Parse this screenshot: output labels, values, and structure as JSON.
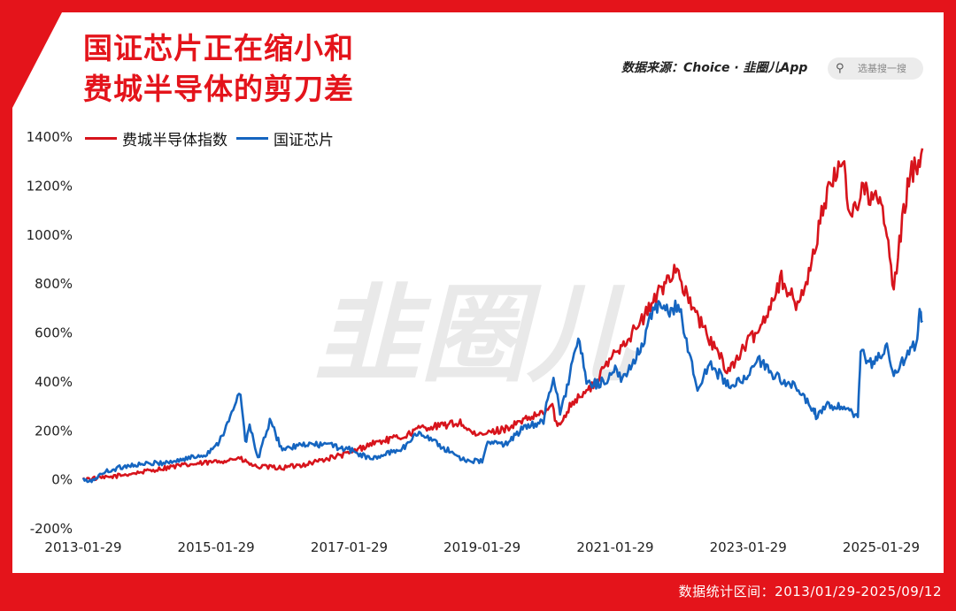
{
  "header": {
    "title_line1": "国证芯片正在缩小和",
    "title_line2": "费城半导体的剪刀差",
    "source": "数据来源：Choice · 韭圈儿App",
    "search_placeholder": "选基搜一搜"
  },
  "footer": {
    "range": "数据统计区间：2013/01/29-2025/09/12"
  },
  "watermark": "韭圈儿",
  "colors": {
    "frame": "#e4141b",
    "sox": "#d7141c",
    "chip": "#1565c0",
    "watermark": "#e9e9e9"
  },
  "icons": {
    "search": "search-icon"
  },
  "chart_data": {
    "type": "line",
    "title": "国证芯片正在缩小和费城半导体的剪刀差",
    "xlabel": "",
    "ylabel": "",
    "x_range": [
      "2013-01-29",
      "2025-09-12"
    ],
    "ylim": [
      -200,
      1400
    ],
    "y_ticks": [
      -200,
      0,
      200,
      400,
      600,
      800,
      1000,
      1200,
      1400
    ],
    "y_tick_labels": [
      "-200%",
      "0%",
      "200%",
      "400%",
      "600%",
      "800%",
      "1000%",
      "1200%",
      "1400%"
    ],
    "x_tick_labels": [
      "2013-01-29",
      "2015-01-29",
      "2017-01-29",
      "2019-01-29",
      "2021-01-29",
      "2023-01-29",
      "2025-01-29"
    ],
    "legend_position": "top-left",
    "grid": false,
    "series": [
      {
        "name": "费城半导体指数",
        "color": "#d7141c",
        "points": [
          [
            "2013-01-29",
            0
          ],
          [
            "2013-06-01",
            5
          ],
          [
            "2014-01-01",
            30
          ],
          [
            "2014-06-01",
            50
          ],
          [
            "2015-01-29",
            70
          ],
          [
            "2015-06-01",
            85
          ],
          [
            "2015-09-01",
            50
          ],
          [
            "2016-01-29",
            45
          ],
          [
            "2016-06-01",
            60
          ],
          [
            "2017-01-29",
            105
          ],
          [
            "2017-06-01",
            145
          ],
          [
            "2017-12-01",
            175
          ],
          [
            "2018-03-01",
            210
          ],
          [
            "2018-06-01",
            215
          ],
          [
            "2018-10-01",
            230
          ],
          [
            "2018-12-24",
            175
          ],
          [
            "2019-06-01",
            205
          ],
          [
            "2019-12-31",
            270
          ],
          [
            "2020-02-19",
            300
          ],
          [
            "2020-03-18",
            205
          ],
          [
            "2020-06-01",
            310
          ],
          [
            "2020-10-01",
            380
          ],
          [
            "2021-01-29",
            520
          ],
          [
            "2021-06-01",
            620
          ],
          [
            "2021-12-27",
            870
          ],
          [
            "2022-03-01",
            740
          ],
          [
            "2022-06-15",
            590
          ],
          [
            "2022-10-13",
            440
          ],
          [
            "2023-01-29",
            560
          ],
          [
            "2023-04-01",
            610
          ],
          [
            "2023-07-31",
            820
          ],
          [
            "2023-10-27",
            700
          ],
          [
            "2024-01-29",
            920
          ],
          [
            "2024-03-07",
            1100
          ],
          [
            "2024-07-10",
            1320
          ],
          [
            "2024-08-07",
            1060
          ],
          [
            "2024-10-15",
            1180
          ],
          [
            "2025-01-29",
            1120
          ],
          [
            "2025-03-01",
            1000
          ],
          [
            "2025-04-08",
            760
          ],
          [
            "2025-06-01",
            1100
          ],
          [
            "2025-07-15",
            1260
          ],
          [
            "2025-08-15",
            1280
          ],
          [
            "2025-09-12",
            1350
          ]
        ]
      },
      {
        "name": "国证芯片",
        "color": "#1565c0",
        "points": [
          [
            "2013-01-29",
            0
          ],
          [
            "2013-03-01",
            -15
          ],
          [
            "2013-06-01",
            30
          ],
          [
            "2013-10-01",
            55
          ],
          [
            "2014-01-01",
            60
          ],
          [
            "2014-06-01",
            70
          ],
          [
            "2014-12-01",
            100
          ],
          [
            "2015-02-01",
            140
          ],
          [
            "2015-04-01",
            220
          ],
          [
            "2015-06-12",
            360
          ],
          [
            "2015-07-08",
            145
          ],
          [
            "2015-08-01",
            220
          ],
          [
            "2015-09-15",
            80
          ],
          [
            "2015-11-20",
            235
          ],
          [
            "2016-01-28",
            120
          ],
          [
            "2016-06-01",
            140
          ],
          [
            "2016-10-01",
            140
          ],
          [
            "2017-01-29",
            120
          ],
          [
            "2017-06-01",
            80
          ],
          [
            "2017-12-01",
            130
          ],
          [
            "2018-01-25",
            180
          ],
          [
            "2018-03-12",
            185
          ],
          [
            "2018-06-01",
            140
          ],
          [
            "2018-10-18",
            80
          ],
          [
            "2019-01-29",
            70
          ],
          [
            "2019-03-01",
            150
          ],
          [
            "2019-06-01",
            140
          ],
          [
            "2019-09-01",
            200
          ],
          [
            "2020-01-01",
            240
          ],
          [
            "2020-02-25",
            430
          ],
          [
            "2020-04-01",
            260
          ],
          [
            "2020-07-10",
            570
          ],
          [
            "2020-09-01",
            380
          ],
          [
            "2020-12-01",
            400
          ],
          [
            "2021-01-29",
            440
          ],
          [
            "2021-03-10",
            400
          ],
          [
            "2021-07-01",
            560
          ],
          [
            "2021-09-01",
            700
          ],
          [
            "2021-12-01",
            680
          ],
          [
            "2022-01-10",
            720
          ],
          [
            "2022-04-26",
            360
          ],
          [
            "2022-07-01",
            470
          ],
          [
            "2022-10-31",
            370
          ],
          [
            "2023-01-29",
            430
          ],
          [
            "2023-04-01",
            480
          ],
          [
            "2023-07-01",
            420
          ],
          [
            "2023-10-01",
            380
          ],
          [
            "2024-01-29",
            280
          ],
          [
            "2024-02-06",
            240
          ],
          [
            "2024-04-01",
            300
          ],
          [
            "2024-07-01",
            290
          ],
          [
            "2024-09-23",
            250
          ],
          [
            "2024-10-08",
            520
          ],
          [
            "2024-12-01",
            470
          ],
          [
            "2025-01-29",
            510
          ],
          [
            "2025-03-01",
            530
          ],
          [
            "2025-04-08",
            430
          ],
          [
            "2025-06-01",
            480
          ],
          [
            "2025-08-15",
            560
          ],
          [
            "2025-09-01",
            700
          ],
          [
            "2025-09-12",
            640
          ]
        ]
      }
    ]
  }
}
